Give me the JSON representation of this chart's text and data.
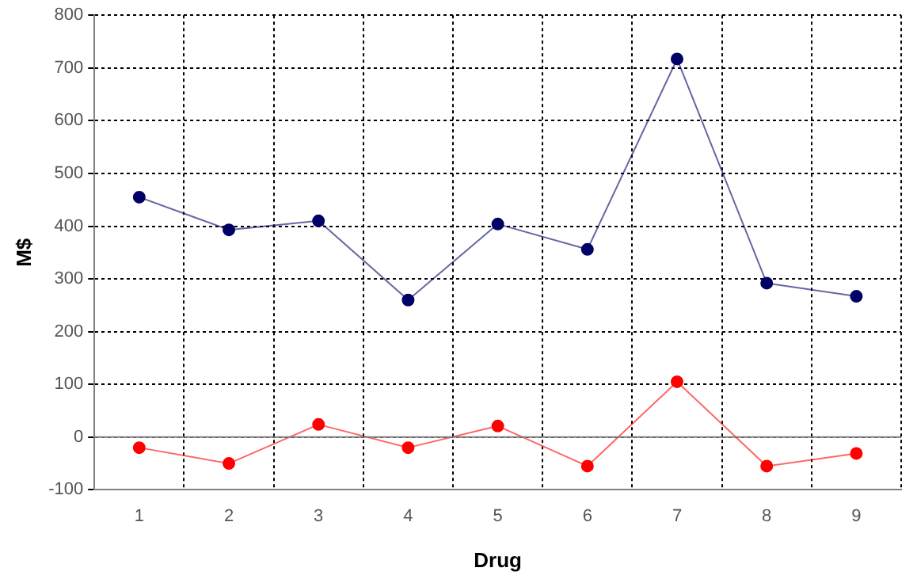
{
  "chart_data": {
    "type": "line",
    "xlabel": "Drug",
    "ylabel": "M$",
    "categories": [
      "1",
      "2",
      "3",
      "4",
      "5",
      "6",
      "7",
      "8",
      "9"
    ],
    "series": [
      {
        "color": "#000066",
        "values": [
          455,
          393,
          410,
          260,
          404,
          356,
          717,
          292,
          267
        ]
      },
      {
        "color": "#ff0000",
        "values": [
          -20,
          -50,
          24,
          -20,
          21,
          -55,
          105,
          -55,
          -31
        ]
      }
    ],
    "ylim": [
      -100,
      800
    ],
    "yticks": [
      -100,
      0,
      100,
      200,
      300,
      400,
      500,
      600,
      700,
      800
    ],
    "grid": true,
    "legend": false,
    "marker": "circle",
    "line_style": "solid"
  }
}
